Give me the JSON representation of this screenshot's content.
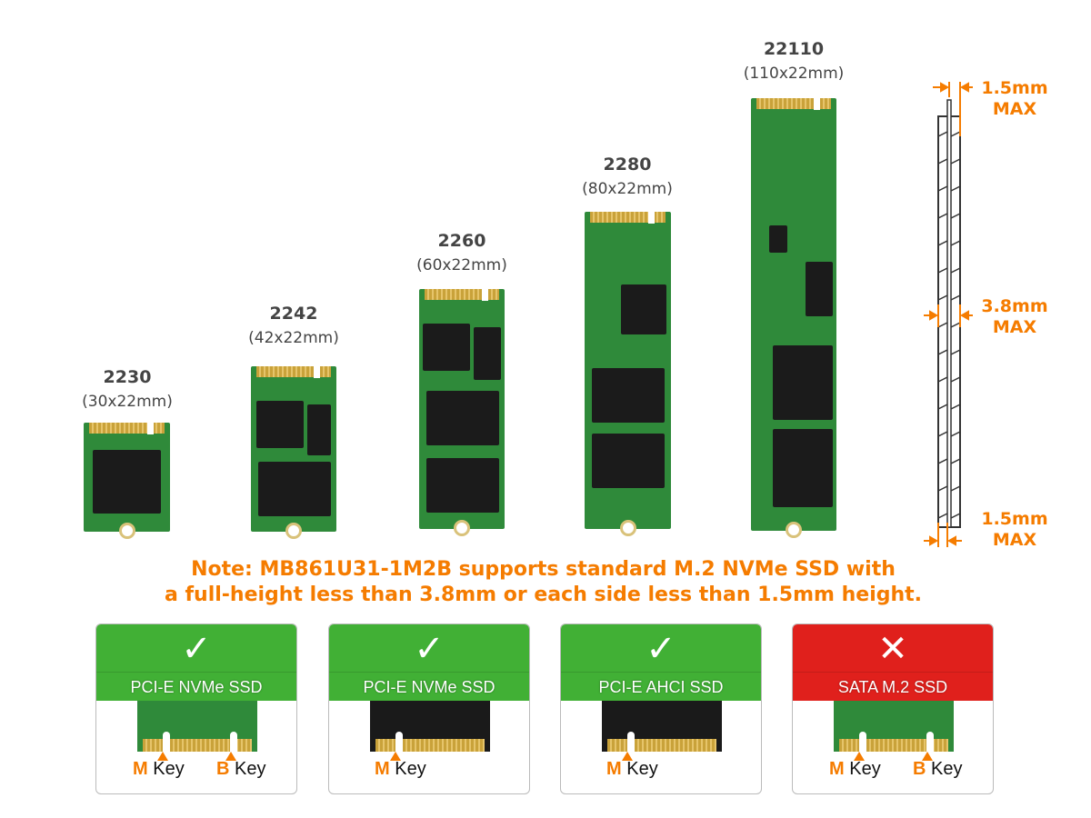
{
  "form_factors": [
    {
      "code": "2230",
      "dims": "(30x22mm)"
    },
    {
      "code": "2242",
      "dims": "(42x22mm)"
    },
    {
      "code": "2260",
      "dims": "(60x22mm)"
    },
    {
      "code": "2280",
      "dims": "(80x22mm)"
    },
    {
      "code": "22110",
      "dims": "(110x22mm)"
    }
  ],
  "thickness": {
    "top": [
      "1.5mm",
      "MAX"
    ],
    "full": [
      "3.8mm",
      "MAX"
    ],
    "bottom": [
      "1.5mm",
      "MAX"
    ]
  },
  "note": {
    "line1": "Note: MB861U31-1M2B supports standard M.2 NVMe SSD with",
    "line2": "a full-height less than 3.8mm or each side less than 1.5mm height."
  },
  "compat": [
    {
      "type": "PCI-E NVMe SSD",
      "supported": true,
      "mark": "✓",
      "keys": [
        {
          "letter": "M",
          "word": "Key"
        },
        {
          "letter": "B",
          "word": "Key"
        }
      ]
    },
    {
      "type": "PCI-E NVMe SSD",
      "supported": true,
      "mark": "✓",
      "keys": [
        {
          "letter": "M",
          "word": "Key"
        }
      ]
    },
    {
      "type": "PCI-E AHCI SSD",
      "supported": true,
      "mark": "✓",
      "keys": [
        {
          "letter": "M",
          "word": "Key"
        }
      ]
    },
    {
      "type": "SATA M.2 SSD",
      "supported": false,
      "mark": "✕",
      "keys": [
        {
          "letter": "M",
          "word": "Key"
        },
        {
          "letter": "B",
          "word": "Key"
        }
      ]
    }
  ],
  "colors": {
    "accent": "#f57c00",
    "supported": "#41b035",
    "unsupported": "#e0201c",
    "pcb": "#2f8a3a"
  }
}
